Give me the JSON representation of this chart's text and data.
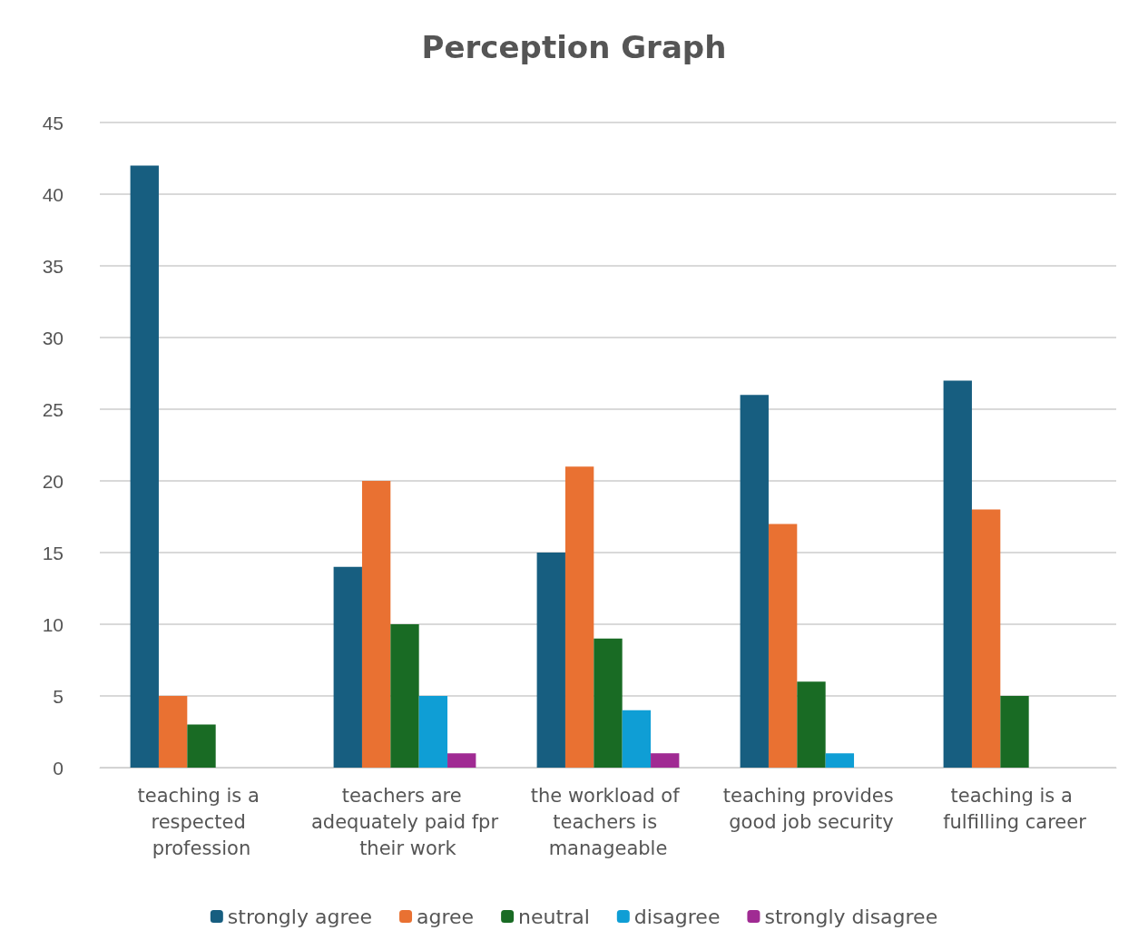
{
  "chart_data": {
    "type": "bar",
    "title": "Perception Graph",
    "categories": [
      "teaching is a respected profession",
      "teachers are adequately paid fpr their work",
      "the workload of teachers is manageable",
      "teaching provides good job security",
      "teaching is a fulfilling career"
    ],
    "series": [
      {
        "name": "strongly agree",
        "color": "#175e80",
        "values": [
          42,
          14,
          15,
          26,
          27
        ]
      },
      {
        "name": "agree",
        "color": "#e97132",
        "values": [
          5,
          20,
          21,
          17,
          18
        ]
      },
      {
        "name": "neutral",
        "color": "#196b24",
        "values": [
          3,
          10,
          9,
          6,
          5
        ]
      },
      {
        "name": "disagree",
        "color": "#0f9ed5",
        "values": [
          0,
          5,
          4,
          1,
          0
        ]
      },
      {
        "name": "strongly disagree",
        "color": "#a02b93",
        "values": [
          null,
          1,
          1,
          0,
          0
        ]
      }
    ],
    "ylim": [
      0,
      45
    ],
    "yticks": [
      0,
      5,
      10,
      15,
      20,
      25,
      30,
      35,
      40,
      45
    ],
    "grid": "y",
    "legend": "bottom"
  }
}
